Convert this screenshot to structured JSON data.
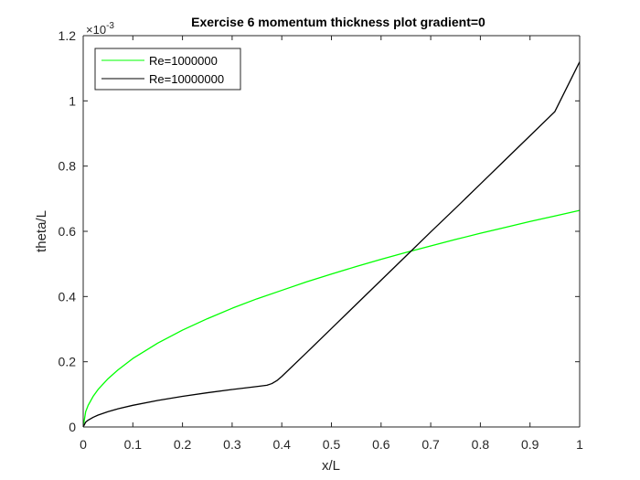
{
  "chart_data": {
    "type": "line",
    "title": "Exercise 6 momentum thickness plot gradient=0",
    "xlabel": "x/L",
    "ylabel": "theta/L",
    "y_exponent_label": "×10",
    "y_exponent_power": "-3",
    "xlim": [
      0,
      1
    ],
    "ylim": [
      0,
      0.0012
    ],
    "x_ticks": [
      0,
      0.1,
      0.2,
      0.3,
      0.4,
      0.5,
      0.6,
      0.7,
      0.8,
      0.9,
      1
    ],
    "x_tick_labels": [
      "0",
      "0.1",
      "0.2",
      "0.3",
      "0.4",
      "0.5",
      "0.6",
      "0.7",
      "0.8",
      "0.9",
      "1"
    ],
    "y_ticks": [
      0,
      0.0002,
      0.0004,
      0.0006,
      0.0008,
      0.001,
      0.0012
    ],
    "y_tick_labels": [
      "0",
      "0.2",
      "0.4",
      "0.6",
      "0.8",
      "1",
      "1.2"
    ],
    "grid": false,
    "legend_position": "top-left",
    "series": [
      {
        "name": "Re=1000000",
        "color": "#00ff00",
        "x": [
          0,
          0.005,
          0.01,
          0.02,
          0.03,
          0.05,
          0.07,
          0.1,
          0.15,
          0.2,
          0.25,
          0.3,
          0.35,
          0.4,
          0.45,
          0.5,
          0.55,
          0.6,
          0.65,
          0.7,
          0.75,
          0.8,
          0.85,
          0.9,
          0.95,
          1.0
        ],
        "y": [
          0,
          4.69e-05,
          6.64e-05,
          9.39e-05,
          0.000115,
          0.000148,
          0.000175,
          0.00021,
          0.000257,
          0.000297,
          0.000332,
          0.000364,
          0.000393,
          0.000419,
          0.000445,
          0.000469,
          0.000492,
          0.000514,
          0.000535,
          0.000555,
          0.000575,
          0.000594,
          0.000612,
          0.00063,
          0.000647,
          0.000664
        ]
      },
      {
        "name": "Re=10000000",
        "color": "#000000",
        "x": [
          0,
          0.005,
          0.01,
          0.02,
          0.03,
          0.05,
          0.07,
          0.1,
          0.15,
          0.2,
          0.25,
          0.3,
          0.35,
          0.37,
          0.38,
          0.39,
          0.4,
          0.45,
          0.5,
          0.55,
          0.6,
          0.65,
          0.7,
          0.75,
          0.8,
          0.85,
          0.9,
          0.95,
          1.0
        ],
        "y": [
          0,
          1.48e-05,
          2.1e-05,
          2.97e-05,
          3.64e-05,
          4.7e-05,
          5.56e-05,
          6.64e-05,
          8.13e-05,
          9.39e-05,
          0.000105,
          0.000115,
          0.000124,
          0.000128,
          0.000133,
          0.000142,
          0.000155,
          0.000228,
          0.000302,
          0.000376,
          0.00045,
          0.000524,
          0.000598,
          0.000671,
          0.000745,
          0.000819,
          0.000893,
          0.000967,
          0.00112
        ]
      }
    ]
  }
}
